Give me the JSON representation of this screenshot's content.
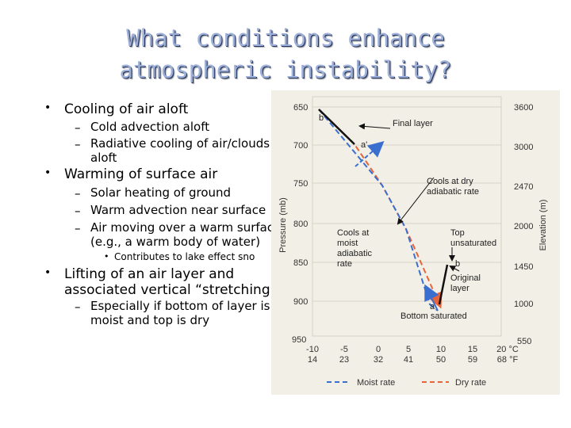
{
  "title": {
    "line1": "What conditions enhance",
    "line2": "atmospheric instability?"
  },
  "bullets": [
    {
      "text": "Cooling of air aloft",
      "sub": [
        "Cold advection aloft",
        "Radiative cooling of air/clouds",
        "aloft"
      ]
    },
    {
      "text": "Warming of surface air",
      "sub": [
        "Solar heating of ground",
        "Warm advection near surface",
        "Air moving over a warm surface",
        "(e.g., a warm body of water)"
      ],
      "subsub": "Contributes to lake effect sno"
    },
    {
      "text_line1": "Lifting of an air layer and",
      "text_line2": "associated vertical “stretching”",
      "sub": [
        "Especially if bottom of layer is",
        "moist and top is dry"
      ]
    }
  ],
  "figure": {
    "pressure_label": "Pressure (mb)",
    "elevation_label": "Elevation (m)",
    "pressure_ticks": [
      "650",
      "700",
      "750",
      "800",
      "850",
      "900",
      "950"
    ],
    "elevation_ticks": [
      "3600",
      "3000",
      "2470",
      "2000",
      "1450",
      "1000",
      "550"
    ],
    "celsius_ticks": [
      "-10",
      "-5",
      "0",
      "5",
      "10",
      "15",
      "20 °C"
    ],
    "fahrenheit_ticks": [
      "14",
      "23",
      "32",
      "41",
      "50",
      "59",
      "68 °F"
    ],
    "annotations": {
      "b_prime": "b'",
      "a_prime": "a'",
      "b": "b",
      "a": "a",
      "final_layer": "Final layer",
      "cools_dry_1": "Cools at dry",
      "cools_dry_2": "adiabatic rate",
      "cools_moist_1": "Cools at",
      "cools_moist_2": "moist",
      "cools_moist_3": "adiabatic",
      "cools_moist_4": "rate",
      "top_unsat_1": "Top",
      "top_unsat_2": "unsaturated",
      "original_layer_1": "Original",
      "original_layer_2": "layer",
      "bottom_saturated": "Bottom saturated"
    },
    "legend": {
      "moist": "Moist rate",
      "dry": "Dry rate"
    },
    "colors": {
      "moist": "#3a6fd0",
      "dry": "#e8643a",
      "layer": "#111111",
      "background": "#f2efe6"
    }
  }
}
